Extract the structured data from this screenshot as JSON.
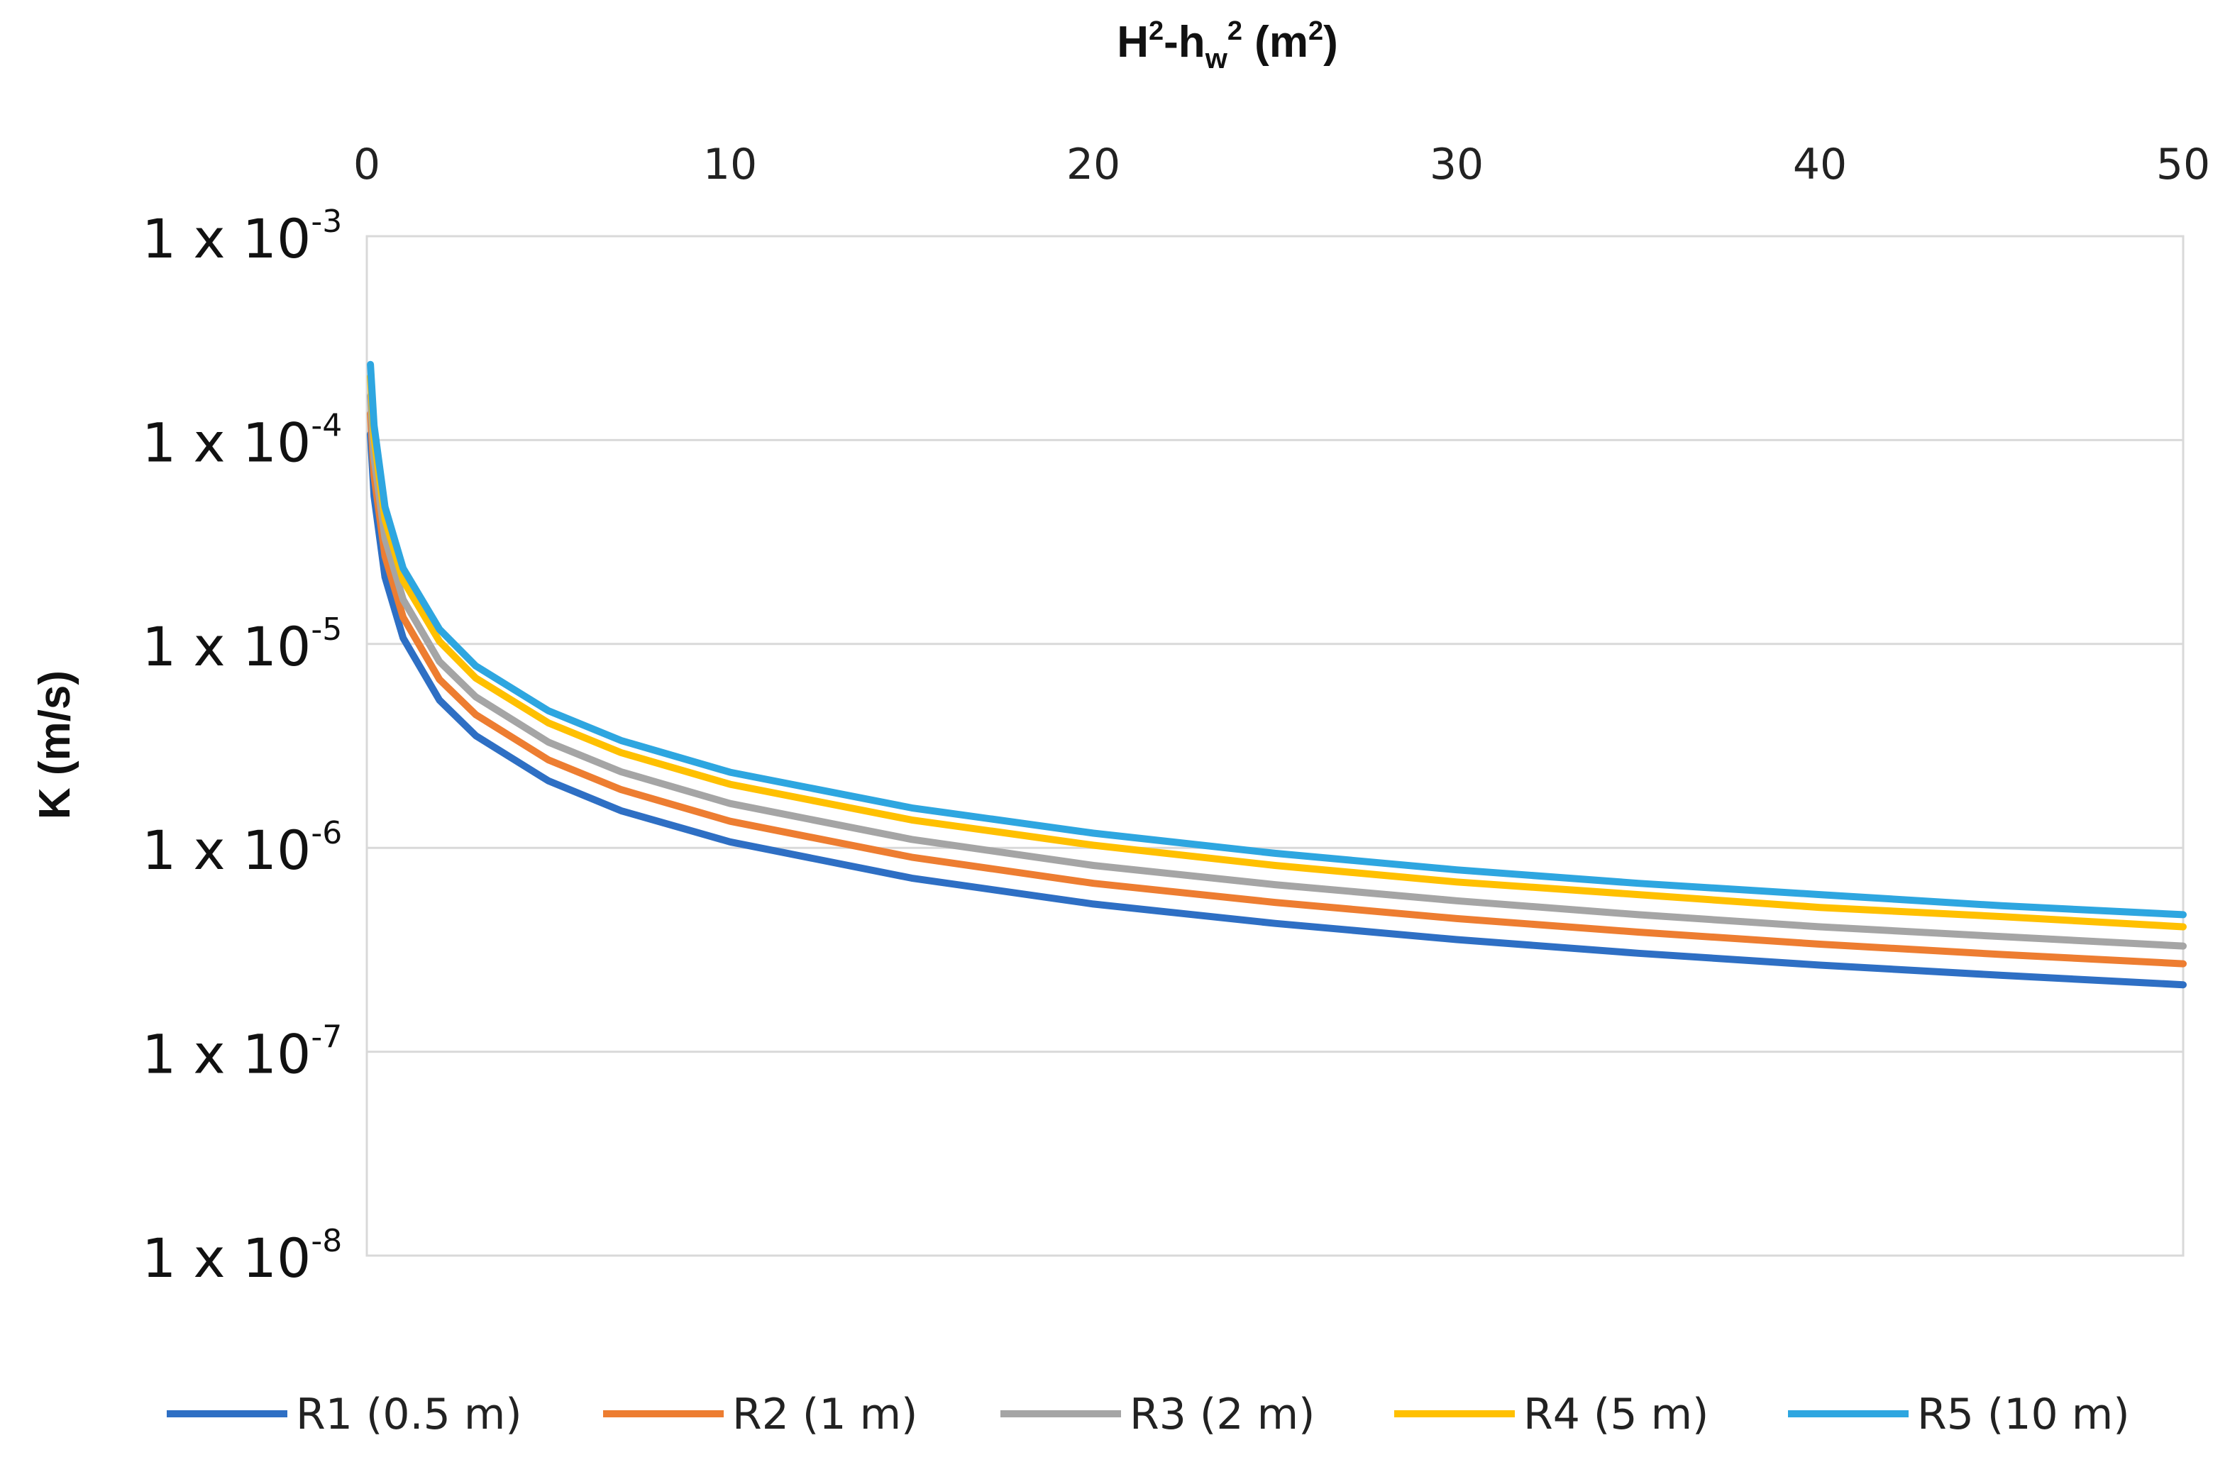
{
  "chart_data": {
    "type": "line",
    "title": "",
    "xlabel": {
      "base": "H",
      "sup1": "2",
      "mid": "-h",
      "sub": "w",
      "sup2": "2",
      "unit_open": " (m",
      "unit_sup": "2",
      "unit_close": ")"
    },
    "ylabel": "K (m/s)",
    "x_axis_position": "top",
    "xlim": [
      0,
      50
    ],
    "x_ticks": [
      0,
      10,
      20,
      30,
      40,
      50
    ],
    "y_scale": "log",
    "ylim": [
      1e-08,
      0.001
    ],
    "y_ticks": [
      {
        "value": 0.001,
        "mantissa": "1 x 10",
        "exp": "-3"
      },
      {
        "value": 0.0001,
        "mantissa": "1 x 10",
        "exp": "-4"
      },
      {
        "value": 1e-05,
        "mantissa": "1 x 10",
        "exp": "-5"
      },
      {
        "value": 1e-06,
        "mantissa": "1 x 10",
        "exp": "-6"
      },
      {
        "value": 1e-07,
        "mantissa": "1 x 10",
        "exp": "-7"
      },
      {
        "value": 1e-08,
        "mantissa": "1 x 10",
        "exp": "-8"
      }
    ],
    "grid": "horizontal",
    "legend_position": "bottom",
    "x": [
      0.1,
      0.2,
      0.5,
      1,
      2,
      3,
      5,
      7,
      10,
      15,
      20,
      25,
      30,
      35,
      40,
      45,
      50
    ],
    "series": [
      {
        "name": "R1 (0.5 m)",
        "color": "#2E6FC4",
        "values": [
          0.000107,
          5.3e-05,
          2.13e-05,
          1.07e-05,
          5.3e-06,
          3.55e-06,
          2.13e-06,
          1.52e-06,
          1.07e-06,
          7.1e-07,
          5.3e-07,
          4.26e-07,
          3.55e-07,
          3.04e-07,
          2.66e-07,
          2.37e-07,
          2.13e-07
        ]
      },
      {
        "name": "R2 (1 m)",
        "color": "#ED7D31",
        "values": [
          0.000135,
          6.7e-05,
          2.7e-05,
          1.35e-05,
          6.7e-06,
          4.5e-06,
          2.7e-06,
          1.93e-06,
          1.35e-06,
          9e-07,
          6.7e-07,
          5.4e-07,
          4.5e-07,
          3.86e-07,
          3.37e-07,
          3e-07,
          2.7e-07
        ]
      },
      {
        "name": "R3 (2 m)",
        "color": "#A5A5A5",
        "values": [
          0.000165,
          8.2e-05,
          3.3e-05,
          1.65e-05,
          8.2e-06,
          5.5e-06,
          3.3e-06,
          2.36e-06,
          1.65e-06,
          1.1e-06,
          8.2e-07,
          6.6e-07,
          5.5e-07,
          4.7e-07,
          4.1e-07,
          3.67e-07,
          3.3e-07
        ]
      },
      {
        "name": "R4 (5 m)",
        "color": "#FFC000",
        "values": [
          0.000205,
          0.000103,
          4.1e-05,
          2.05e-05,
          1.03e-05,
          6.8e-06,
          4.1e-06,
          2.93e-06,
          2.05e-06,
          1.37e-06,
          1.03e-06,
          8.2e-07,
          6.8e-07,
          5.9e-07,
          5.1e-07,
          4.6e-07,
          4.1e-07
        ]
      },
      {
        "name": "R5 (10 m)",
        "color": "#2EA6E0",
        "values": [
          0.000235,
          0.000118,
          4.7e-05,
          2.35e-05,
          1.18e-05,
          7.8e-06,
          4.7e-06,
          3.36e-06,
          2.35e-06,
          1.57e-06,
          1.18e-06,
          9.4e-07,
          7.8e-07,
          6.7e-07,
          5.9e-07,
          5.2e-07,
          4.7e-07
        ]
      }
    ]
  },
  "style": {
    "grid_color": "#D9D9D9",
    "frame_color": "#D9D9D9"
  }
}
